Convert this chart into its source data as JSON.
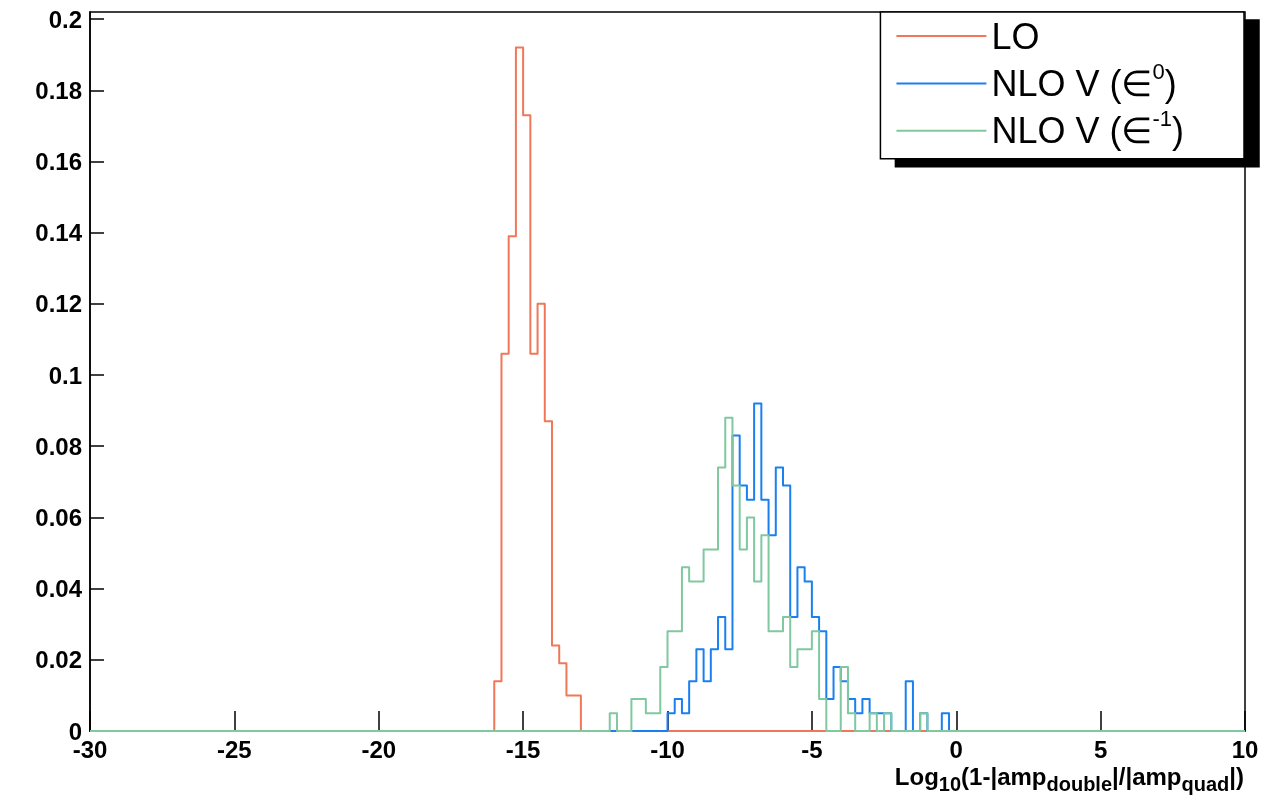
{
  "chart_data": {
    "type": "histogram",
    "xlabel": "Log$_{10}$(1-|amp$_{double}$|/|amp$_{quad}$|)",
    "bins": [
      -30,
      -16,
      -15.75,
      -15.5,
      -15.25,
      -15,
      -14.75,
      -14.5,
      -14.25,
      -14,
      -13.75,
      -13.5,
      -13.25,
      -13,
      -12.75,
      -12.5,
      -12.25,
      -12,
      -11.75,
      -11.5,
      -11.25,
      -11,
      -10.75,
      -10.5,
      -10.25,
      -10,
      -9.75,
      -9.5,
      -9.25,
      -9,
      -8.75,
      -8.5,
      -8.25,
      -8,
      -7.75,
      -7.5,
      -7.25,
      -7,
      -6.75,
      -6.5,
      -6.25,
      -6,
      -5.75,
      -5.5,
      -5.25,
      -5,
      -4.75,
      -4.5,
      -4.25,
      -4,
      -3.75,
      -3.5,
      -3.25,
      -3,
      -2.75,
      -2.5,
      -2.25,
      -2,
      -1.75,
      -1.5,
      -1.25,
      -1,
      -0.75,
      -0.5,
      -0.25,
      0,
      10
    ],
    "series": [
      {
        "name": "LO",
        "color": "#f07858",
        "values": [
          0,
          0.014,
          0.106,
          0.139,
          0.192,
          0.173,
          0.106,
          0.12,
          0.087,
          0.024,
          0.019,
          0.01,
          0.01,
          0,
          0,
          0,
          0,
          0,
          0,
          0,
          0,
          0,
          0,
          0,
          0,
          0,
          0,
          0,
          0,
          0,
          0,
          0,
          0,
          0,
          0,
          0,
          0,
          0,
          0,
          0,
          0,
          0,
          0,
          0,
          0,
          0,
          0,
          0,
          0,
          0,
          0,
          0,
          0,
          0,
          0,
          0,
          0,
          0,
          0,
          0,
          0,
          0,
          0,
          0,
          0,
          0
        ]
      },
      {
        "name": "NLO V (∈$^{0}$)",
        "color": "#1a80f0",
        "values": [
          0,
          0,
          0,
          0,
          0,
          0,
          0,
          0,
          0,
          0,
          0,
          0,
          0,
          0,
          0,
          0,
          0,
          0,
          0,
          0,
          0,
          0,
          0,
          0,
          0,
          0.005,
          0.009,
          0.005,
          0.014,
          0.023,
          0.014,
          0.023,
          0.032,
          0.023,
          0.083,
          0.069,
          0.065,
          0.092,
          0.065,
          0.055,
          0.074,
          0.069,
          0.032,
          0.046,
          0.042,
          0.032,
          0.028,
          0.009,
          0.018,
          0.014,
          0.009,
          0.005,
          0.009,
          0.005,
          0.005,
          0.005,
          0,
          0,
          0.014,
          0,
          0.005,
          0,
          0,
          0.005,
          0,
          0
        ]
      },
      {
        "name": "NLO V (∈$^{-1}$)",
        "color": "#80c8a0",
        "values": [
          0,
          0,
          0,
          0,
          0,
          0,
          0,
          0,
          0,
          0,
          0,
          0,
          0,
          0,
          0,
          0,
          0,
          0.005,
          0,
          0,
          0.009,
          0.009,
          0.005,
          0.005,
          0.018,
          0.028,
          0.028,
          0.046,
          0.042,
          0.042,
          0.051,
          0.051,
          0.074,
          0.088,
          0.069,
          0.051,
          0.06,
          0.042,
          0.055,
          0.028,
          0.028,
          0.032,
          0.018,
          0.023,
          0.023,
          0.028,
          0.009,
          0,
          0,
          0.018,
          0.005,
          0,
          0,
          0.005,
          0,
          0.005,
          0,
          0,
          0,
          0,
          0.005,
          0,
          0,
          0,
          0,
          0
        ]
      }
    ],
    "xlim": [
      -30,
      10
    ],
    "xticks": [
      -30,
      -25,
      -20,
      -15,
      -10,
      -5,
      0,
      5,
      10
    ],
    "ylim": [
      0,
      0.202
    ],
    "yticks": [
      0,
      0.02,
      0.04,
      0.06,
      0.08,
      0.1,
      0.12,
      0.14,
      0.16,
      0.18,
      0.2
    ],
    "grid": false,
    "legend": "top right"
  }
}
